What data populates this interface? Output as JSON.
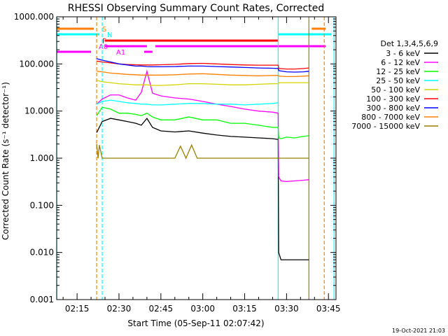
{
  "chart_data": {
    "type": "line",
    "title": "RHESSI Observing Summary Count Rates, Corrected",
    "xlabel": "Start Time (05-Sep-11 02:07:42)",
    "ylabel": "Corrected Count Rate (s⁻¹ detector⁻¹)",
    "yscale": "log",
    "ylim": [
      0.001,
      1000
    ],
    "xlim": [
      "02:07:42",
      "03:47:42"
    ],
    "x_ticks": [
      "02:15",
      "02:30",
      "02:45",
      "03:00",
      "03:15",
      "03:30",
      "03:45"
    ],
    "y_ticks": [
      "1000.000",
      "100.000",
      "10.000",
      "1.000",
      "0.100",
      "0.010",
      "0.001"
    ],
    "legend_title": "Det 1,3,4,5,6,9",
    "legend_position": "right",
    "grid": false,
    "series": [
      {
        "name": "3 - 6 keV",
        "color": "#000000",
        "x": [
          "02:22:00",
          "02:24:00",
          "02:27:00",
          "02:30:00",
          "02:33:00",
          "02:36:00",
          "02:38:00",
          "02:40:00",
          "02:42:00",
          "02:45:00",
          "02:50:00",
          "02:55:00",
          "03:00:00",
          "03:05:00",
          "03:10:00",
          "03:15:00",
          "03:20:00",
          "03:25:00",
          "03:27:00",
          "03:27:10",
          "03:28:00",
          "03:30:00",
          "03:33:00",
          "03:36:00",
          "03:38:00"
        ],
        "y": [
          3.5,
          6,
          7,
          6.5,
          6,
          5.5,
          5,
          7,
          4.5,
          3.8,
          3.6,
          3.8,
          3.4,
          3.1,
          2.9,
          2.8,
          2.7,
          2.6,
          2.5,
          0.01,
          0.007,
          0.007,
          0.007,
          0.007,
          0.007
        ]
      },
      {
        "name": "6 - 12 keV",
        "color": "#ff00ff",
        "x": [
          "02:22:00",
          "02:24:00",
          "02:27:00",
          "02:30:00",
          "02:33:00",
          "02:36:00",
          "02:38:00",
          "02:40:00",
          "02:42:00",
          "02:45:00",
          "02:50:00",
          "02:55:00",
          "03:00:00",
          "03:05:00",
          "03:10:00",
          "03:15:00",
          "03:20:00",
          "03:25:00",
          "03:27:00",
          "03:27:10",
          "03:28:00",
          "03:30:00",
          "03:33:00",
          "03:36:00",
          "03:38:00"
        ],
        "y": [
          14,
          18,
          22,
          22,
          19,
          17,
          25,
          70,
          24,
          21,
          19,
          18,
          16,
          14,
          12.5,
          11,
          10,
          9.5,
          9,
          0.4,
          0.33,
          0.32,
          0.33,
          0.34,
          0.35
        ]
      },
      {
        "name": "12 - 25 keV",
        "color": "#00ff00",
        "x": [
          "02:22:00",
          "02:24:00",
          "02:27:00",
          "02:30:00",
          "02:33:00",
          "02:36:00",
          "02:38:00",
          "02:40:00",
          "02:42:00",
          "02:45:00",
          "02:50:00",
          "02:55:00",
          "03:00:00",
          "03:05:00",
          "03:10:00",
          "03:15:00",
          "03:20:00",
          "03:25:00",
          "03:27:00",
          "03:27:10",
          "03:28:00",
          "03:30:00",
          "03:33:00",
          "03:36:00",
          "03:38:00"
        ],
        "y": [
          8,
          12,
          11,
          9,
          9,
          8.5,
          8,
          9,
          7.5,
          6.5,
          6.5,
          7.5,
          6.5,
          6.5,
          5.5,
          5.5,
          5,
          4.5,
          4.5,
          2.7,
          2.6,
          2.8,
          2.7,
          2.9,
          3
        ]
      },
      {
        "name": "25 - 50 keV",
        "color": "#00ffff",
        "x": [
          "02:22:00",
          "02:24:00",
          "02:27:00",
          "02:30:00",
          "02:33:00",
          "02:36:00",
          "02:38:00",
          "02:40:00",
          "02:42:00",
          "02:45:00",
          "02:50:00",
          "02:55:00",
          "03:00:00",
          "03:05:00",
          "03:10:00",
          "03:15:00",
          "03:20:00",
          "03:25:00",
          "03:27:00"
        ],
        "y": [
          14,
          16,
          17,
          16,
          15,
          14.5,
          14,
          14,
          13.5,
          13.5,
          14,
          14.5,
          14.5,
          14,
          14,
          13.5,
          14,
          14.5,
          15
        ]
      },
      {
        "name": "50 - 100 keV",
        "color": "#d4d400",
        "x": [
          "02:22:00",
          "02:24:00",
          "02:27:00",
          "02:30:00",
          "02:33:00",
          "02:36:00",
          "02:38:00",
          "02:40:00",
          "02:42:00",
          "02:45:00",
          "02:50:00",
          "02:55:00",
          "03:00:00",
          "03:05:00",
          "03:10:00",
          "03:15:00",
          "03:20:00",
          "03:25:00",
          "03:27:00",
          "03:27:10",
          "03:30:00",
          "03:33:00",
          "03:36:00",
          "03:38:00"
        ],
        "y": [
          45,
          42,
          40,
          38,
          37,
          36,
          36,
          36,
          35,
          35,
          36,
          38,
          38,
          37,
          36,
          36,
          37,
          38,
          38,
          40,
          40,
          40,
          40,
          40
        ]
      },
      {
        "name": "100 - 300 keV",
        "color": "#ff0000",
        "x": [
          "02:22:00",
          "02:24:00",
          "02:27:00",
          "02:30:00",
          "02:33:00",
          "02:36:00",
          "02:38:00",
          "02:40:00",
          "02:42:00",
          "02:45:00",
          "02:50:00",
          "02:55:00",
          "03:00:00",
          "03:05:00",
          "03:10:00",
          "03:15:00",
          "03:20:00",
          "03:25:00",
          "03:27:00",
          "03:27:10",
          "03:30:00",
          "03:33:00",
          "03:36:00",
          "03:38:00"
        ],
        "y": [
          115,
          110,
          105,
          100,
          97,
          96,
          95,
          95,
          95,
          96,
          98,
          102,
          103,
          100,
          97,
          95,
          94,
          94,
          94,
          80,
          78,
          78,
          80,
          82
        ]
      },
      {
        "name": "300 - 800 keV",
        "color": "#0000ff",
        "x": [
          "02:22:00",
          "02:24:00",
          "02:27:00",
          "02:30:00",
          "02:33:00",
          "02:36:00",
          "02:38:00",
          "02:40:00",
          "02:42:00",
          "02:45:00",
          "02:50:00",
          "02:55:00",
          "03:00:00",
          "03:05:00",
          "03:10:00",
          "03:15:00",
          "03:20:00",
          "03:25:00",
          "03:27:00",
          "03:27:10",
          "03:30:00",
          "03:33:00",
          "03:36:00",
          "03:38:00"
        ],
        "y": [
          130,
          120,
          110,
          100,
          95,
          90,
          90,
          88,
          87,
          87,
          88,
          90,
          90,
          88,
          86,
          84,
          82,
          81,
          80,
          72,
          68,
          67,
          68,
          70
        ]
      },
      {
        "name": "800 - 7000 keV",
        "color": "#ff8000",
        "x": [
          "02:22:00",
          "02:24:00",
          "02:27:00",
          "02:30:00",
          "02:33:00",
          "02:36:00",
          "02:38:00",
          "02:40:00",
          "02:42:00",
          "02:45:00",
          "02:50:00",
          "02:55:00",
          "03:00:00",
          "03:05:00",
          "03:10:00",
          "03:15:00",
          "03:20:00",
          "03:25:00",
          "03:27:00",
          "03:27:10",
          "03:30:00",
          "03:33:00",
          "03:36:00",
          "03:38:00"
        ],
        "y": [
          70,
          68,
          64,
          62,
          60,
          59,
          58,
          58,
          58,
          58,
          59,
          61,
          62,
          60,
          58,
          57,
          56,
          57,
          57,
          55,
          54,
          54,
          55,
          56
        ]
      },
      {
        "name": "7000 - 15000 keV",
        "color": "#998000",
        "x": [
          "02:22:00",
          "02:22:30",
          "02:23:00",
          "02:24:00",
          "02:30:00",
          "02:35:00",
          "02:40:00",
          "02:45:00",
          "02:50:00",
          "02:52:00",
          "02:54:00",
          "02:56:00",
          "02:58:00",
          "03:00:00",
          "03:05:00",
          "03:10:00",
          "03:15:00",
          "03:20:00",
          "03:25:00",
          "03:27:00",
          "03:30:00",
          "03:35:00",
          "03:38:00"
        ],
        "y": [
          2.0,
          1.0,
          1.9,
          1.0,
          1.0,
          1.0,
          1.0,
          1.0,
          1.0,
          1.8,
          1.0,
          1.9,
          1.0,
          1.0,
          1.0,
          1.0,
          1.0,
          1.0,
          1.0,
          1.0,
          1.0,
          1.0,
          1.0
        ]
      }
    ],
    "vertical_lines": [
      {
        "x": "02:07:42",
        "color": "#00ffff"
      },
      {
        "x": "02:22:00",
        "color": "#ff8000"
      },
      {
        "x": "02:24:00",
        "color": "#00ffff"
      },
      {
        "x": "03:27:00",
        "color": "#00ffff"
      },
      {
        "x": "03:38:00",
        "color": "#998000"
      },
      {
        "x": "03:43:30",
        "color": "#ff8000"
      },
      {
        "x": "03:47:00",
        "color": "#00ffff"
      }
    ],
    "flag_bars": [
      {
        "label": "S",
        "color": "#ff8000",
        "segments": [
          [
            "02:07:42",
            "02:21:00"
          ],
          [
            "03:39:00",
            "03:44:00"
          ]
        ]
      },
      {
        "label": "N",
        "color": "#00ffff",
        "segments": [
          [
            "02:07:42",
            "02:23:00"
          ],
          [
            "03:27:00",
            "03:46:00"
          ]
        ]
      },
      {
        "label": "F",
        "color": "#ff0000",
        "segments": [
          [
            "02:25:00",
            "03:27:00"
          ]
        ]
      },
      {
        "label": "A0",
        "color": "#ff00ff",
        "segments": [
          [
            "02:25:00",
            "02:40:00"
          ],
          [
            "02:43:00",
            "03:44:00"
          ]
        ]
      },
      {
        "label": "A1",
        "color": "#ff00ff",
        "segments": [
          [
            "02:07:42",
            "02:20:00"
          ],
          [
            "02:39:00",
            "02:42:00"
          ]
        ]
      }
    ],
    "timestamp": "19-Oct-2021 21:03"
  }
}
